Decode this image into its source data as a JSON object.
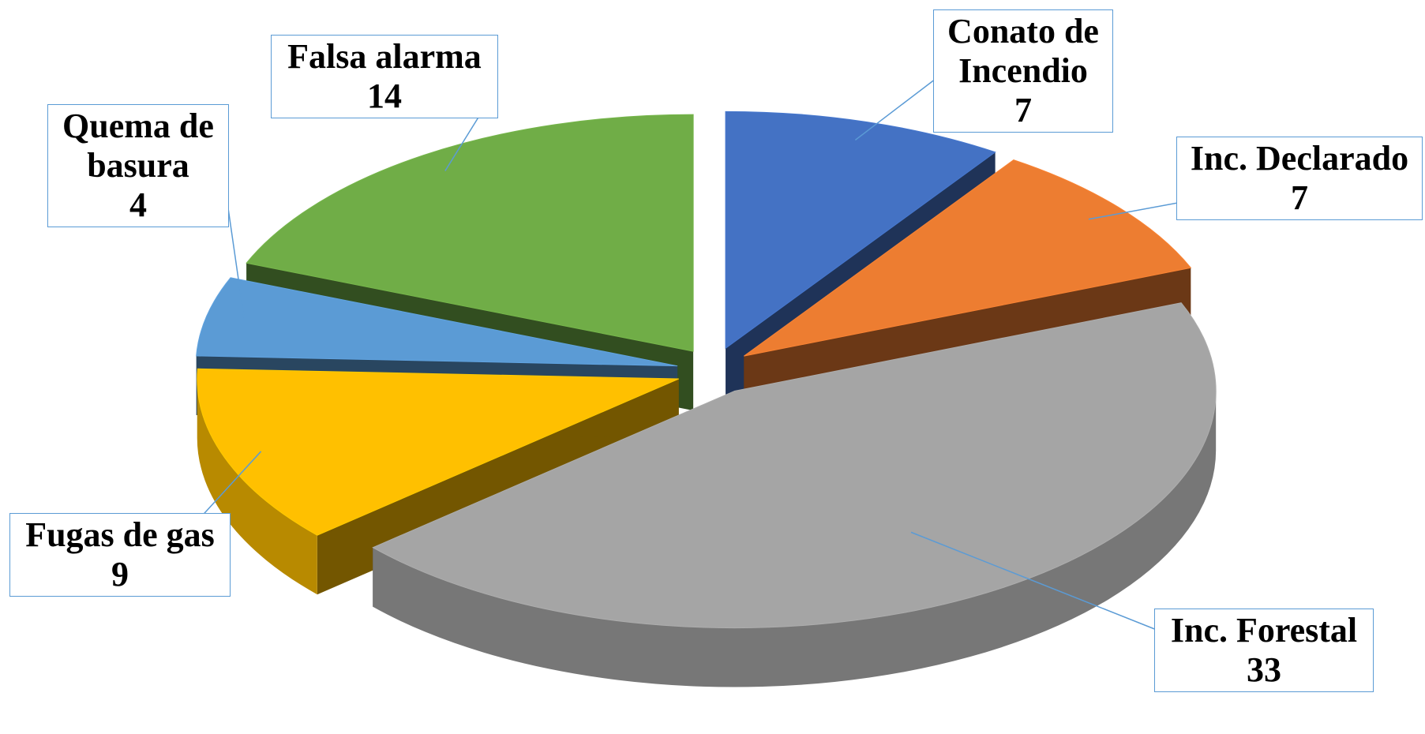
{
  "chart_data": {
    "type": "pie3d",
    "categories": [
      "Conato de Incendio",
      "Inc. Declarado",
      "Inc. Forestal",
      "Fugas de gas",
      "Quema de basura",
      "Falsa alarma"
    ],
    "values": [
      7,
      7,
      33,
      9,
      4,
      14
    ],
    "colors": [
      "#4472c4",
      "#ed7d31",
      "#a5a5a5",
      "#ffc000",
      "#5b9bd5",
      "#70ad47"
    ],
    "exploded": true
  }
}
